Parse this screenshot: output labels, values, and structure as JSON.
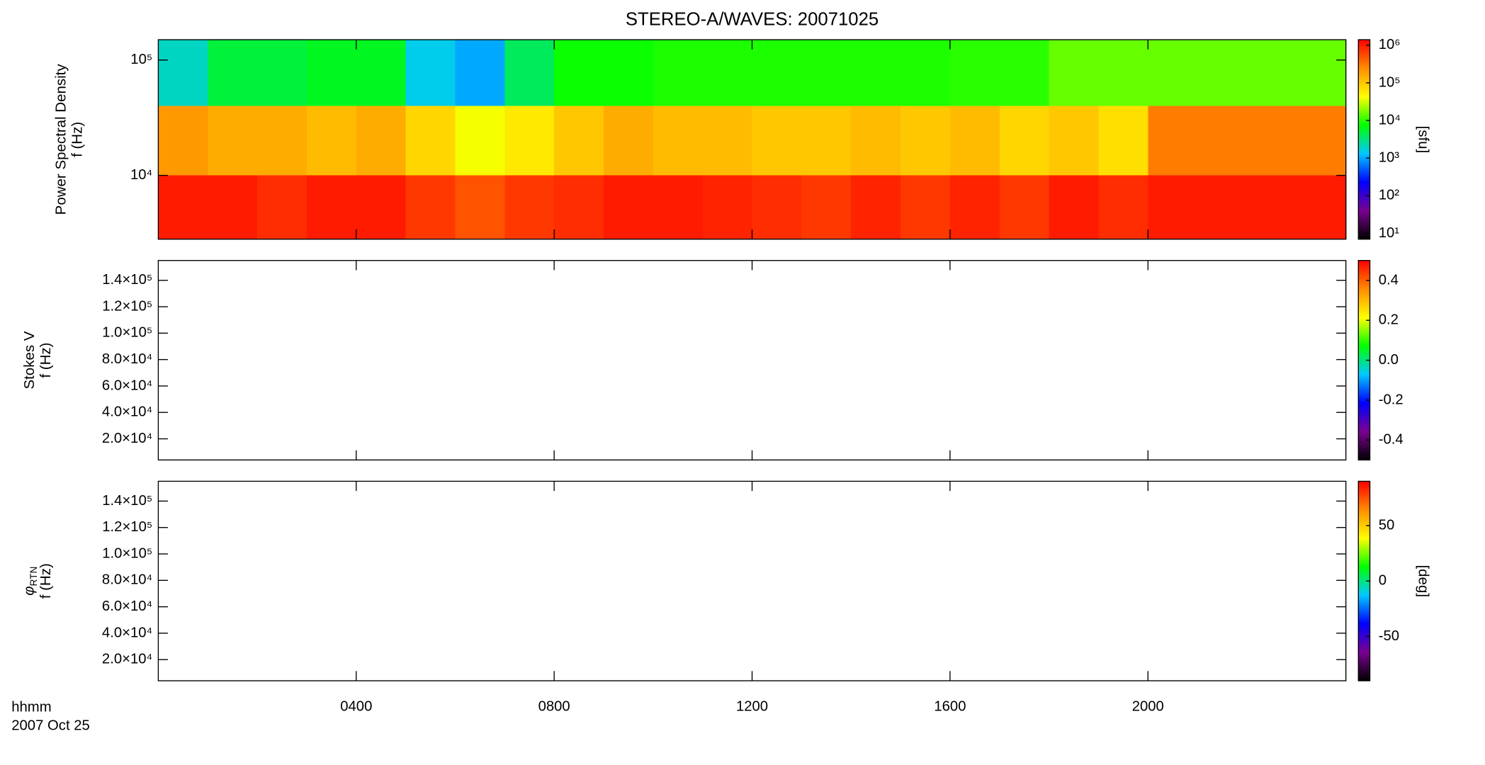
{
  "chart_data": [
    {
      "type": "heatmap",
      "title": "STEREO-A/WAVES: 20071025",
      "ylabel": [
        "Power Spectral Density",
        "f (Hz)"
      ],
      "xlim": [
        0,
        24
      ],
      "ylim": [
        2800,
        150000
      ],
      "ylog": true,
      "yticks": [
        {
          "value": 10000,
          "label": "10⁴"
        },
        {
          "value": 100000,
          "label": "10⁵"
        }
      ],
      "x_edges": [
        0,
        1,
        2,
        3,
        4,
        5,
        6,
        7,
        8,
        9,
        10,
        11,
        12,
        13,
        14,
        15,
        16,
        17,
        18,
        19,
        20,
        21,
        22,
        23,
        24
      ],
      "y_edges": [
        2800,
        10000,
        40000,
        150000
      ],
      "z": [
        [
          1000000,
          1000000,
          800000,
          1000000,
          1000000,
          700000,
          500000,
          700000,
          800000,
          1000000,
          1000000,
          900000,
          800000,
          700000,
          900000,
          700000,
          900000,
          700000,
          1000000,
          800000,
          1000000,
          1000000,
          1000000,
          1000000
        ],
        [
          200000,
          150000,
          150000,
          120000,
          150000,
          80000,
          40000,
          60000,
          100000,
          150000,
          120000,
          120000,
          100000,
          100000,
          120000,
          100000,
          120000,
          80000,
          100000,
          70000,
          300000,
          300000,
          300000,
          300000
        ],
        [
          2000,
          5000,
          5000,
          6000,
          6000,
          1500,
          1000,
          4000,
          8000,
          8000,
          9000,
          9000,
          9000,
          9000,
          9000,
          9000,
          10000,
          10000,
          15000,
          15000,
          15000,
          15000,
          15000,
          15000
        ]
      ],
      "clim": [
        7,
        1400000
      ],
      "clog": true,
      "clabel": "[sfu]",
      "cticks": [
        {
          "value": 10,
          "label": "10¹"
        },
        {
          "value": 100,
          "label": "10²"
        },
        {
          "value": 1000,
          "label": "10³"
        },
        {
          "value": 10000,
          "label": "10⁴"
        },
        {
          "value": 100000,
          "label": "10⁵"
        },
        {
          "value": 1000000,
          "label": "10⁶"
        }
      ],
      "colormap": [
        "#000000",
        "#7a0090",
        "#0000ff",
        "#00c8ff",
        "#00ff00",
        "#ffff00",
        "#ff8c00",
        "#ff0000"
      ]
    },
    {
      "type": "heatmap",
      "ylabel": [
        "Stokes V",
        "f (Hz)"
      ],
      "xlim": [
        0,
        24
      ],
      "ylim": [
        4000,
        155000
      ],
      "yticks": [
        {
          "value": 20000,
          "label": "2.0×10⁴"
        },
        {
          "value": 40000,
          "label": "4.0×10⁴"
        },
        {
          "value": 60000,
          "label": "6.0×10⁴"
        },
        {
          "value": 80000,
          "label": "8.0×10⁴"
        },
        {
          "value": 100000,
          "label": "1.0×10⁵"
        },
        {
          "value": 120000,
          "label": "1.2×10⁵"
        },
        {
          "value": 140000,
          "label": "1.4×10⁵"
        }
      ],
      "clim": [
        -0.5,
        0.5
      ],
      "cticks": [
        -0.4,
        -0.2,
        {
          "value": 0,
          "label": "0.0"
        },
        0.2,
        0.4
      ],
      "colormap": [
        "#000000",
        "#7a0090",
        "#0000ff",
        "#00c8ff",
        "#00ff00",
        "#ffff00",
        "#ff8c00",
        "#ff0000"
      ]
    },
    {
      "type": "heatmap",
      "ylabel": [
        {
          "symbol": "φ",
          "sub": "RTN"
        },
        "f (Hz)"
      ],
      "xlim": [
        0,
        24
      ],
      "ylim": [
        4000,
        155000
      ],
      "yticks": [
        {
          "value": 20000,
          "label": "2.0×10⁴"
        },
        {
          "value": 40000,
          "label": "4.0×10⁴"
        },
        {
          "value": 60000,
          "label": "6.0×10⁴"
        },
        {
          "value": 80000,
          "label": "8.0×10⁴"
        },
        {
          "value": 100000,
          "label": "1.0×10⁵"
        },
        {
          "value": 120000,
          "label": "1.2×10⁵"
        },
        {
          "value": 140000,
          "label": "1.4×10⁵"
        }
      ],
      "clim": [
        -90,
        90
      ],
      "clabel": "[deg]",
      "cticks": [
        -50,
        0,
        50
      ],
      "colormap": [
        "#000000",
        "#7a0090",
        "#0000ff",
        "#00c8ff",
        "#00ff00",
        "#ffff00",
        "#ff8c00",
        "#ff0000"
      ],
      "xticks": [
        {
          "value": 4,
          "label": "0400"
        },
        {
          "value": 8,
          "label": "0800"
        },
        {
          "value": 12,
          "label": "1200"
        },
        {
          "value": 16,
          "label": "1600"
        },
        {
          "value": 20,
          "label": "2000"
        }
      ],
      "xlabel": "hhmm",
      "date": "2007 Oct 25"
    }
  ]
}
